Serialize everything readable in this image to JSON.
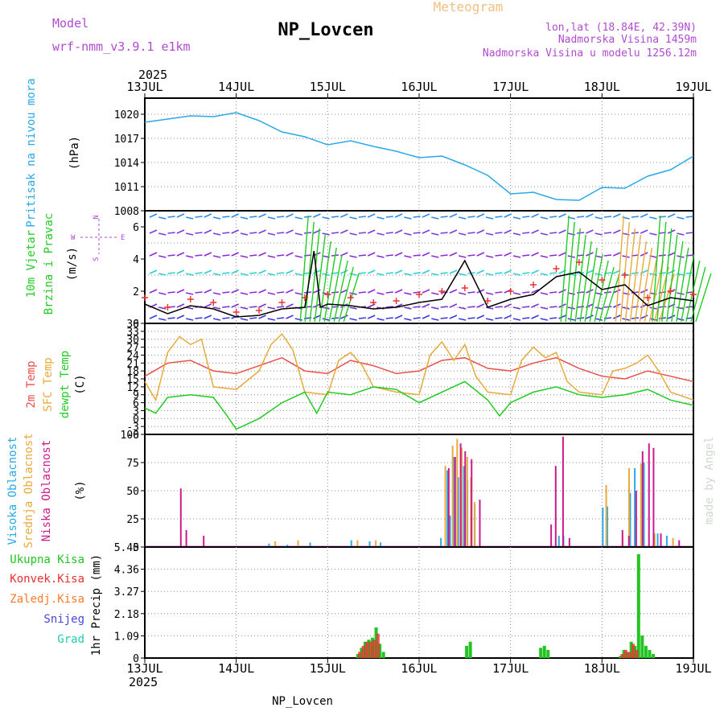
{
  "header": {
    "model_label": "Model",
    "model_name": "wrf-nmm_v3.9.1  e1km",
    "title": "NP_Lovcen",
    "subtitle": "Meteogram",
    "coords": "lon,lat (18.84E, 42.39N)",
    "elevation": "Nadmorska Visina 1459m",
    "model_elevation": "Nadmorska Visina u modelu 1256.12m",
    "year_top": "2025",
    "year_bottom": "2025",
    "footer_station": "NP_Lovcen",
    "watermark": "made by Angel"
  },
  "colors": {
    "pressure": "#2aa8e8",
    "temp2m": "#e8504a",
    "sfc": "#e8aa3a",
    "dewpt": "#22cc22",
    "wind_mean": "#000000",
    "gust": "#e83030",
    "cloud_high": "#2aa8e8",
    "cloud_mid": "#e8aa3a",
    "cloud_low": "#cc1a8a",
    "precip_total": "#22c422",
    "precip_conv": "#e83030",
    "precip_frozen": "#ff7a2a",
    "precip_snow": "#4646e0",
    "precip_hail": "#22ccaa",
    "wind_label_1": "#22cc22",
    "dir_legend": "#b04ad0"
  },
  "chart_data": [
    {
      "type": "line",
      "panel": "pressure",
      "ylabel_main": "Pritisak na nivou mora",
      "ylabel_unit": "(hPa)",
      "ylim": [
        1008,
        1022
      ],
      "yticks": [
        1008,
        1011,
        1014,
        1017,
        1020
      ],
      "x_days": [
        "13JUL",
        "14JUL",
        "15JUL",
        "16JUL",
        "17JUL",
        "18JUL",
        "19JUL"
      ],
      "series": [
        {
          "x": [
            0,
            0.25,
            0.5,
            0.75,
            1.0,
            1.25,
            1.5,
            1.75,
            2.0,
            2.25,
            2.5,
            2.75,
            3.0,
            3.25,
            3.5,
            3.75,
            4.0,
            4.25,
            4.5,
            4.75,
            5.0,
            5.25,
            5.5,
            5.75,
            6.0
          ],
          "values": [
            1019,
            1019.4,
            1019.8,
            1019.7,
            1020.2,
            1019.2,
            1017.8,
            1017.2,
            1016.2,
            1016.7,
            1016.0,
            1015.4,
            1014.6,
            1014.8,
            1013.7,
            1012.4,
            1010.1,
            1010.3,
            1009.4,
            1009.3,
            1010.9,
            1010.8,
            1012.3,
            1013.1,
            1014.8
          ]
        }
      ]
    },
    {
      "type": "line",
      "panel": "wind",
      "ylabel_main": "10m Vjetar",
      "ylabel_main2": "Brzina i Pravac",
      "ylabel_unit": "(m/s)",
      "dir_legend": [
        "N",
        "W",
        "E",
        "S"
      ],
      "ylim": [
        0,
        7
      ],
      "yticks": [
        0,
        2,
        4,
        6
      ],
      "series": [
        {
          "name": "mean",
          "x": [
            0,
            0.25,
            0.5,
            0.75,
            1.0,
            1.25,
            1.5,
            1.75,
            1.85,
            1.92,
            2.0,
            2.25,
            2.5,
            2.75,
            3.0,
            3.25,
            3.5,
            3.75,
            4.0,
            4.25,
            4.5,
            4.75,
            5.0,
            5.25,
            5.5,
            5.75,
            6.0
          ],
          "values": [
            1.2,
            0.6,
            1.1,
            0.9,
            0.4,
            0.5,
            0.9,
            1.0,
            4.5,
            1.0,
            1.2,
            1.1,
            0.9,
            1.0,
            1.3,
            1.5,
            3.9,
            1.0,
            1.5,
            1.8,
            2.9,
            3.2,
            2.1,
            2.4,
            1.1,
            1.6,
            1.4
          ]
        },
        {
          "name": "gust",
          "x": [
            0,
            0.25,
            0.5,
            0.75,
            1.0,
            1.25,
            1.5,
            1.75,
            2.0,
            2.25,
            2.5,
            2.75,
            3.0,
            3.25,
            3.5,
            3.75,
            4.0,
            4.25,
            4.5,
            4.75,
            5.0,
            5.25,
            5.5,
            5.75,
            6.0
          ],
          "values": [
            1.6,
            1.0,
            1.5,
            1.3,
            0.7,
            0.8,
            1.3,
            1.6,
            1.8,
            1.6,
            1.3,
            1.4,
            1.8,
            2.0,
            2.2,
            1.4,
            2.0,
            2.4,
            3.4,
            3.8,
            2.7,
            3.0,
            1.6,
            2.0,
            1.8
          ]
        }
      ]
    },
    {
      "type": "line",
      "panel": "temperature",
      "ylabel_main": "2m Temp",
      "ylabel_main2": "SFC Temp",
      "ylabel_main3": "dewpt Temp",
      "ylabel_unit": "(C)",
      "ylim": [
        -6,
        36
      ],
      "yticks": [
        -6,
        -3,
        0,
        3,
        6,
        9,
        12,
        15,
        18,
        21,
        24,
        27,
        30,
        33,
        36
      ],
      "series": [
        {
          "name": "2m",
          "x": [
            0,
            0.25,
            0.5,
            0.75,
            1.0,
            1.25,
            1.5,
            1.75,
            2.0,
            2.25,
            2.5,
            2.75,
            3.0,
            3.25,
            3.5,
            3.75,
            4.0,
            4.25,
            4.5,
            4.75,
            5.0,
            5.25,
            5.5,
            5.75,
            6.0
          ],
          "values": [
            16,
            21,
            22,
            18,
            17,
            20,
            23,
            18,
            17,
            22,
            20,
            17,
            18,
            22,
            23,
            19,
            18,
            21,
            23,
            19,
            16,
            15,
            18,
            16,
            14
          ]
        },
        {
          "name": "sfc",
          "x": [
            0,
            0.12,
            0.25,
            0.38,
            0.5,
            0.62,
            0.75,
            1.0,
            1.25,
            1.38,
            1.5,
            1.62,
            1.75,
            2.0,
            2.12,
            2.25,
            2.38,
            2.5,
            2.75,
            3.0,
            3.12,
            3.25,
            3.38,
            3.5,
            3.62,
            3.75,
            4.0,
            4.12,
            4.25,
            4.38,
            4.5,
            4.62,
            4.75,
            5.0,
            5.12,
            5.25,
            5.38,
            5.5,
            5.62,
            5.75,
            6.0
          ],
          "values": [
            14,
            7,
            25,
            31,
            28,
            30,
            12,
            11,
            18,
            28,
            32,
            26,
            10,
            9,
            22,
            25,
            20,
            12,
            10,
            9,
            24,
            29,
            22,
            28,
            16,
            10,
            9,
            22,
            27,
            23,
            25,
            14,
            10,
            9,
            18,
            19,
            21,
            24,
            18,
            10,
            7
          ]
        },
        {
          "name": "dewpt",
          "x": [
            0,
            0.12,
            0.25,
            0.5,
            0.75,
            0.88,
            1.0,
            1.25,
            1.5,
            1.75,
            1.88,
            2.0,
            2.25,
            2.5,
            2.75,
            3.0,
            3.25,
            3.5,
            3.75,
            3.88,
            4.0,
            4.25,
            4.5,
            4.75,
            5.0,
            5.25,
            5.5,
            5.75,
            6.0
          ],
          "values": [
            4,
            2,
            8,
            9,
            8,
            2,
            -4,
            0,
            6,
            10,
            2,
            10,
            9,
            12,
            11,
            6,
            10,
            14,
            7,
            1,
            6,
            10,
            12,
            9,
            8,
            9,
            11,
            7,
            5
          ]
        }
      ]
    },
    {
      "type": "bar",
      "panel": "clouds",
      "ylabel_main": "Visoka Oblacnost",
      "ylabel_main2": "Srednja Oblacnost",
      "ylabel_main3": "Niska Oblacnost",
      "ylabel_unit": "(%)",
      "ylim": [
        0,
        100
      ],
      "yticks": [
        0,
        25,
        50,
        75,
        100
      ],
      "series": [
        {
          "name": "high",
          "x": [
            1.35,
            1.55,
            1.8,
            2.25,
            2.45,
            2.57,
            3.23,
            3.3,
            3.33,
            3.37,
            3.42,
            3.48,
            3.52,
            3.56,
            3.6,
            4.52,
            4.57,
            5.0,
            5.05,
            5.3,
            5.35,
            5.45,
            5.6,
            5.7
          ],
          "values": [
            3,
            2,
            4,
            6,
            5,
            4,
            8,
            68,
            28,
            80,
            62,
            72,
            60,
            60,
            38,
            10,
            10,
            35,
            36,
            48,
            70,
            75,
            12,
            10
          ]
        },
        {
          "name": "mid",
          "x": [
            1.4,
            1.65,
            2.3,
            2.5,
            3.26,
            3.34,
            3.39,
            3.44,
            3.5,
            3.54,
            3.58,
            5.02,
            5.2,
            5.27,
            5.4,
            5.55,
            5.75
          ],
          "values": [
            5,
            6,
            6,
            6,
            72,
            90,
            96,
            88,
            80,
            62,
            40,
            55,
            10,
            70,
            74,
            12,
            8
          ]
        },
        {
          "name": "low",
          "x": [
            0.35,
            0.41,
            0.6,
            3.28,
            3.35,
            3.41,
            3.46,
            3.53,
            3.62,
            4.45,
            4.53,
            4.6,
            4.4,
            5.18,
            5.25,
            5.33,
            5.4,
            5.47,
            5.52,
            5.6,
            5.8
          ],
          "values": [
            52,
            15,
            10,
            70,
            80,
            92,
            85,
            78,
            42,
            72,
            98,
            8,
            20,
            15,
            10,
            50,
            85,
            92,
            88,
            12,
            6
          ]
        }
      ]
    },
    {
      "type": "bar",
      "panel": "precip",
      "ylabel_main": "1hr Precip (mm)",
      "legend": [
        "Ukupna Kisa",
        "Konvek.Kisa",
        "Zaledj.Kisa",
        "Snijeg",
        "Grad"
      ],
      "ylim": [
        0,
        5.45
      ],
      "yticks": [
        0,
        1.09,
        2.18,
        3.27,
        4.36,
        5.45
      ],
      "series": [
        {
          "name": "total",
          "x": [
            2.33,
            2.37,
            2.41,
            2.45,
            2.49,
            2.53,
            2.57,
            2.61,
            3.52,
            3.56,
            4.33,
            4.37,
            4.41,
            5.2,
            5.24,
            5.28,
            5.32,
            5.36,
            5.4,
            5.44,
            5.48,
            5.52,
            5.56
          ],
          "values": [
            0.2,
            0.5,
            0.8,
            0.9,
            1.0,
            1.5,
            0.7,
            0.3,
            0.6,
            0.8,
            0.5,
            0.6,
            0.4,
            0.1,
            0.4,
            0.3,
            0.8,
            0.6,
            5.1,
            1.1,
            0.6,
            0.4,
            0.2
          ]
        },
        {
          "name": "conv",
          "x": [
            2.35,
            2.39,
            2.43,
            2.47,
            2.51,
            2.55,
            5.22,
            5.26,
            5.3,
            5.34,
            5.38
          ],
          "values": [
            0.3,
            0.6,
            0.8,
            0.8,
            0.9,
            1.2,
            0.2,
            0.4,
            0.3,
            0.7,
            0.4
          ]
        }
      ]
    }
  ]
}
